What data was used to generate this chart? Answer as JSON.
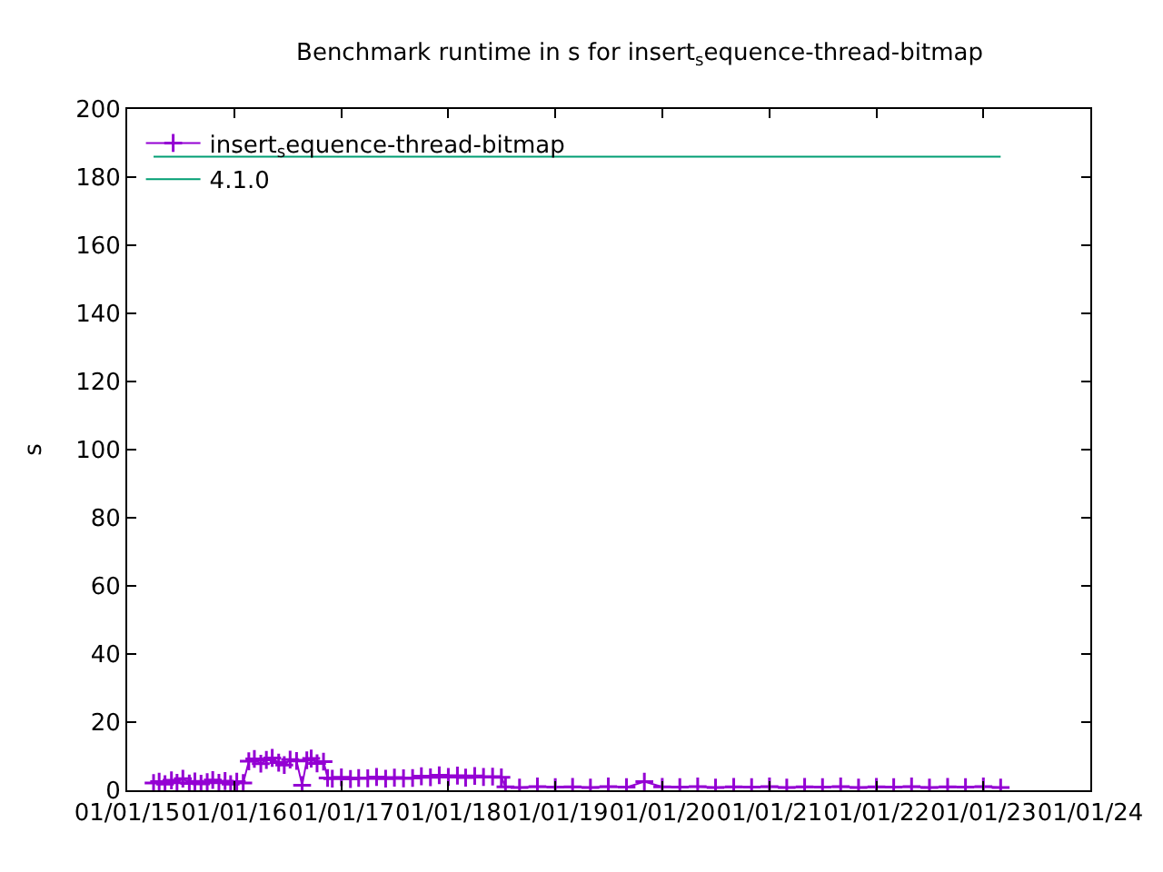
{
  "chart_data": {
    "type": "line",
    "title": "Benchmark runtime in s for insert$_{s}$equence-thread-bitmap",
    "ylabel": "s",
    "xlim": [
      "2015-01-01",
      "2024-01-01"
    ],
    "xticks": [
      {
        "value": "2015-01-01",
        "label": "01/01/15"
      },
      {
        "value": "2016-01-01",
        "label": "01/01/16"
      },
      {
        "value": "2017-01-01",
        "label": "01/01/17"
      },
      {
        "value": "2018-01-01",
        "label": "01/01/18"
      },
      {
        "value": "2019-01-01",
        "label": "01/01/19"
      },
      {
        "value": "2020-01-01",
        "label": "01/01/20"
      },
      {
        "value": "2021-01-01",
        "label": "01/01/21"
      },
      {
        "value": "2022-01-01",
        "label": "01/01/22"
      },
      {
        "value": "2023-01-01",
        "label": "01/01/23"
      },
      {
        "value": "2024-01-01",
        "label": "01/01/24"
      }
    ],
    "ylim": [
      0,
      200
    ],
    "yticks": [
      0,
      20,
      40,
      60,
      80,
      100,
      120,
      140,
      160,
      180,
      200
    ],
    "legend": "top left",
    "series": [
      {
        "name": "insert$_{s}$equence-thread-bitmap",
        "color": "#9400d3",
        "marker": "cross",
        "line_style": "solid",
        "x": [
          "2015-04-01",
          "2015-04-20",
          "2015-05-10",
          "2015-06-01",
          "2015-06-20",
          "2015-07-10",
          "2015-08-01",
          "2015-08-20",
          "2015-09-10",
          "2015-10-01",
          "2015-10-20",
          "2015-11-10",
          "2015-12-01",
          "2015-12-20",
          "2016-01-10",
          "2016-02-01",
          "2016-02-20",
          "2016-03-10",
          "2016-04-01",
          "2016-04-20",
          "2016-05-10",
          "2016-06-01",
          "2016-06-20",
          "2016-07-10",
          "2016-08-01",
          "2016-08-20",
          "2016-09-05",
          "2016-09-20",
          "2016-10-10",
          "2016-11-01",
          "2016-11-15",
          "2016-12-01",
          "2017-01-01",
          "2017-02-01",
          "2017-03-01",
          "2017-04-01",
          "2017-05-01",
          "2017-06-01",
          "2017-07-01",
          "2017-08-01",
          "2017-09-01",
          "2017-10-01",
          "2017-11-01",
          "2017-12-01",
          "2018-01-01",
          "2018-02-01",
          "2018-03-01",
          "2018-04-01",
          "2018-05-01",
          "2018-06-01",
          "2018-07-01",
          "2018-07-15",
          "2018-09-01",
          "2018-11-01",
          "2019-01-01",
          "2019-03-01",
          "2019-05-01",
          "2019-07-01",
          "2019-09-01",
          "2019-11-01",
          "2020-01-01",
          "2020-03-01",
          "2020-05-01",
          "2020-07-01",
          "2020-09-01",
          "2020-11-01",
          "2021-01-01",
          "2021-03-01",
          "2021-05-01",
          "2021-07-01",
          "2021-09-01",
          "2021-11-01",
          "2022-01-01",
          "2022-03-01",
          "2022-05-01",
          "2022-07-01",
          "2022-09-01",
          "2022-11-01",
          "2023-01-01",
          "2023-03-01"
        ],
        "values": [
          2.1,
          2.5,
          1.8,
          2.9,
          2.2,
          3.4,
          2.0,
          2.6,
          1.9,
          2.4,
          3.0,
          2.2,
          2.7,
          1.8,
          2.5,
          2.1,
          8.5,
          9.2,
          7.8,
          8.9,
          9.5,
          8.1,
          7.4,
          9.0,
          8.6,
          1.5,
          8.8,
          9.3,
          7.9,
          8.4,
          3.6,
          3.4,
          3.8,
          3.3,
          3.6,
          3.5,
          3.9,
          3.4,
          3.7,
          3.5,
          3.6,
          4.1,
          3.8,
          4.4,
          3.9,
          4.3,
          3.7,
          4.2,
          3.9,
          4.0,
          3.8,
          1.0,
          0.8,
          1.1,
          0.9,
          1.0,
          0.8,
          1.1,
          0.9,
          2.5,
          1.0,
          0.9,
          1.1,
          0.8,
          1.0,
          0.9,
          1.1,
          0.8,
          1.0,
          0.9,
          1.1,
          0.8,
          1.0,
          0.9,
          1.1,
          0.8,
          1.0,
          0.9,
          1.1,
          0.8
        ]
      },
      {
        "name": "4.1.0",
        "color": "#009e73",
        "marker": "none",
        "line_style": "solid",
        "x": [
          "2015-04-01",
          "2023-03-01"
        ],
        "values": [
          186,
          186
        ]
      }
    ]
  }
}
